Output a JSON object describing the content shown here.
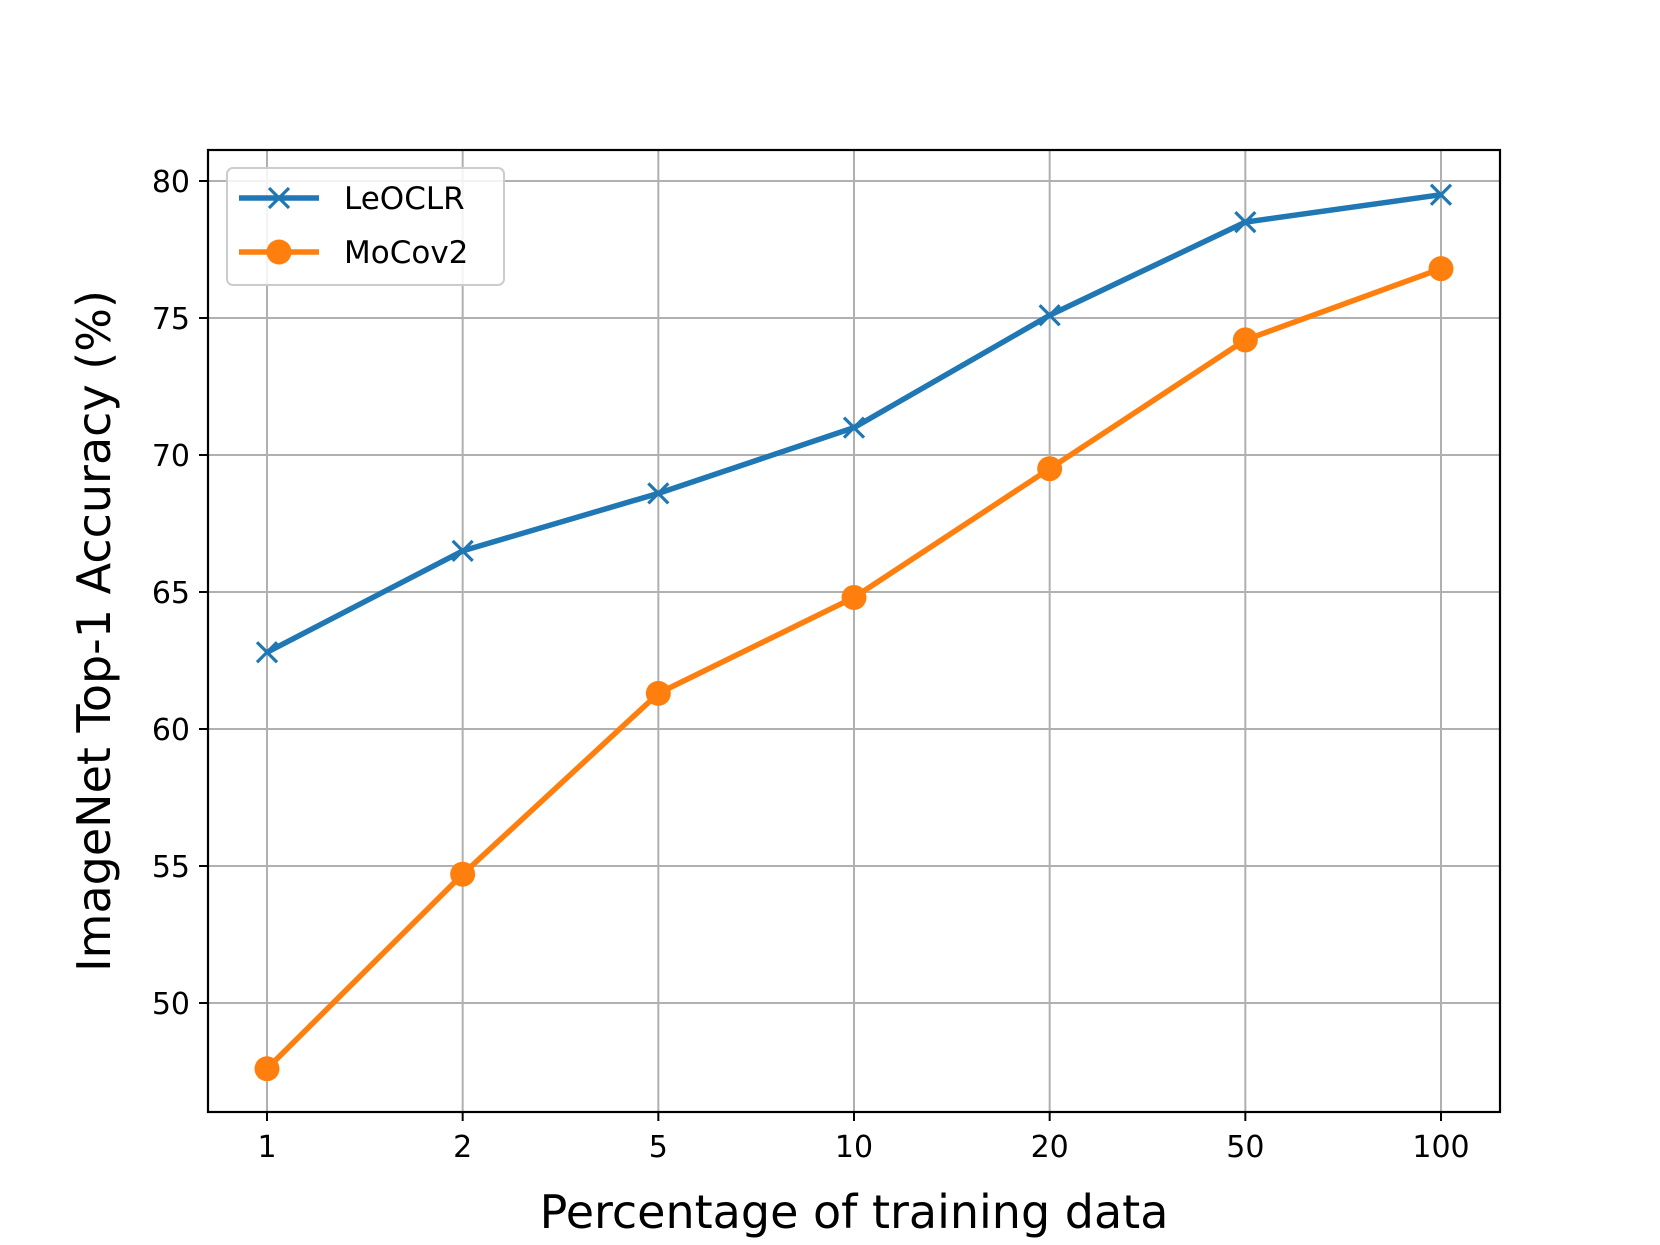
{
  "chart_data": {
    "type": "line",
    "title": "",
    "xlabel": "Percentage of training data",
    "ylabel": "ImageNet Top-1 Accuracy (%)",
    "x": [
      "1",
      "2",
      "5",
      "10",
      "20",
      "50",
      "100"
    ],
    "x_scale": "categorical",
    "ylim": [
      46,
      81
    ],
    "yticks": [
      50,
      55,
      60,
      65,
      70,
      75,
      80
    ],
    "grid": true,
    "legend_position": "top-left",
    "series": [
      {
        "name": "LeOCLR",
        "values": [
          62.8,
          66.5,
          68.6,
          71.0,
          75.1,
          78.5,
          79.5
        ],
        "color": "#1f77b4",
        "marker": "x"
      },
      {
        "name": "MoCov2",
        "values": [
          47.6,
          54.7,
          61.3,
          64.8,
          69.5,
          74.2,
          76.8
        ],
        "color": "#ff7f0e",
        "marker": "o"
      }
    ]
  }
}
